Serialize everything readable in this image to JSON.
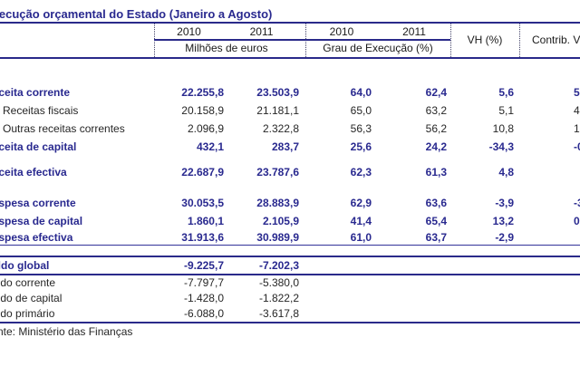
{
  "title": "Execução orçamental do Estado (Janeiro a Agosto)",
  "colors": {
    "navy_text": "#29298f",
    "navy_line": "#2a2a8a",
    "body_text": "#262626"
  },
  "header": {
    "group1_2010": "2010",
    "group1_2011": "2011",
    "group1_unit": "Milhões de euros",
    "group2_2010": "2010",
    "group2_2011": "2011",
    "group2_unit": "Grau de Execução (%)",
    "vh": "VH (%)",
    "contrib": "Contrib. V"
  },
  "table": {
    "body_rows": [
      {
        "label": "Receita corrente",
        "style": "section",
        "values": [
          "22.255,8",
          "23.503,9",
          "64,0",
          "62,4",
          "5,6",
          "5"
        ]
      },
      {
        "label": "Receitas fiscais",
        "style": "sub",
        "values": [
          "20.158,9",
          "21.181,1",
          "65,0",
          "63,2",
          "5,1",
          "4"
        ]
      },
      {
        "label": "Outras receitas correntes",
        "style": "sub",
        "values": [
          "2.096,9",
          "2.322,8",
          "56,3",
          "56,2",
          "10,8",
          "1"
        ]
      },
      {
        "label": "Receita de capital",
        "style": "section",
        "values": [
          "432,1",
          "283,7",
          "25,6",
          "24,2",
          "-34,3",
          "-0"
        ]
      },
      {
        "label": "Receita efectiva",
        "style": "section",
        "values": [
          "22.687,9",
          "23.787,6",
          "62,3",
          "61,3",
          "4,8",
          ""
        ]
      },
      {
        "label": "Despesa corrente",
        "style": "section",
        "values": [
          "30.053,5",
          "28.883,9",
          "62,9",
          "63,6",
          "-3,9",
          "-3"
        ]
      },
      {
        "label": "Despesa de capital",
        "style": "section",
        "values": [
          "1.860,1",
          "2.105,9",
          "41,4",
          "65,4",
          "13,2",
          "0"
        ]
      },
      {
        "label": "Despesa efectiva",
        "style": "section",
        "values": [
          "31.913,6",
          "30.989,9",
          "61,0",
          "63,7",
          "-2,9",
          ""
        ]
      }
    ],
    "saldo_rows": [
      {
        "label": "Saldo global",
        "style": "saldo-main",
        "values": [
          "-9.225,7",
          "-7.202,3",
          "",
          "",
          "",
          ""
        ]
      },
      {
        "label": "Saldo corrente",
        "style": "saldo-sub",
        "values": [
          "-7.797,7",
          "-5.380,0",
          "",
          "",
          "",
          ""
        ]
      },
      {
        "label": "Saldo de capital",
        "style": "saldo-sub",
        "values": [
          "-1.428,0",
          "-1.822,2",
          "",
          "",
          "",
          ""
        ]
      },
      {
        "label": "Saldo primário",
        "style": "saldo-sub",
        "values": [
          "-6.088,0",
          "-3.617,8",
          "",
          "",
          "",
          ""
        ]
      }
    ]
  },
  "footer": {
    "source": "Fonte: Ministério das Finanças"
  }
}
